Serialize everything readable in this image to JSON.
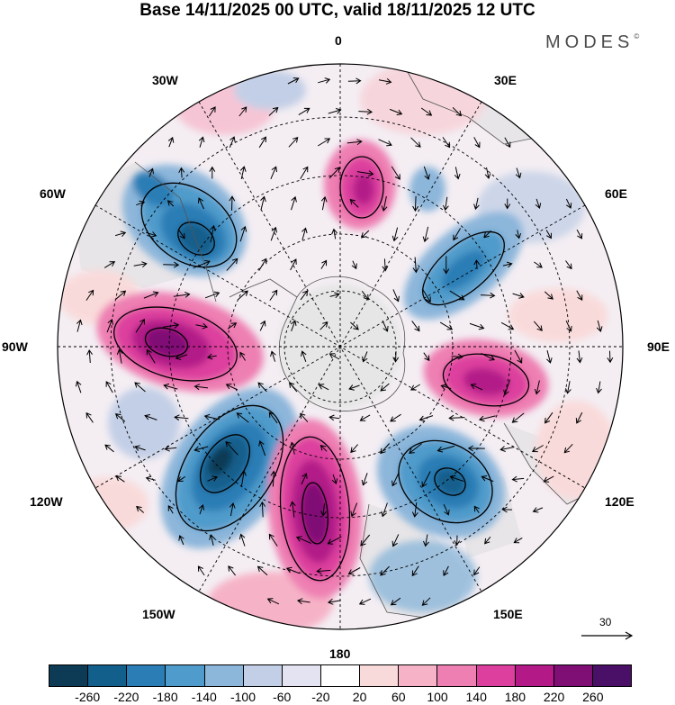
{
  "title": "Base 14/11/2025 00 UTC, valid 18/11/2025 12 UTC",
  "brand": "MODES",
  "brand_mark": "©",
  "longitude_labels": [
    "0",
    "30E",
    "60E",
    "90E",
    "120E",
    "150E",
    "180",
    "150W",
    "120W",
    "90W",
    "60W",
    "30W"
  ],
  "reference_vector": {
    "label": "30",
    "value": 30
  },
  "legend": {
    "ticks": [
      "-260",
      "-220",
      "-180",
      "-140",
      "-100",
      "-60",
      "-20",
      "20",
      "60",
      "100",
      "140",
      "180",
      "220",
      "260"
    ],
    "colors": [
      "#0d3a55",
      "#135f8c",
      "#2a7db5",
      "#4f9bcb",
      "#8cb6da",
      "#c3cfe6",
      "#e3e3f2",
      "#ffffff",
      "#f9dada",
      "#f6b3c7",
      "#ee7fb2",
      "#dd3f9e",
      "#b31a88",
      "#7f0f75",
      "#4a0f66"
    ]
  },
  "anomaly_centers": [
    {
      "name": "low-60W",
      "value": -180
    },
    {
      "name": "high-0",
      "value": 180
    },
    {
      "name": "low-45E",
      "value": -140
    },
    {
      "name": "high-90W",
      "value": 240
    },
    {
      "name": "high-95E",
      "value": 220
    },
    {
      "name": "low-125W",
      "value": -260
    },
    {
      "name": "high-165W",
      "value": 260
    },
    {
      "name": "low-140E",
      "value": -220
    }
  ]
}
